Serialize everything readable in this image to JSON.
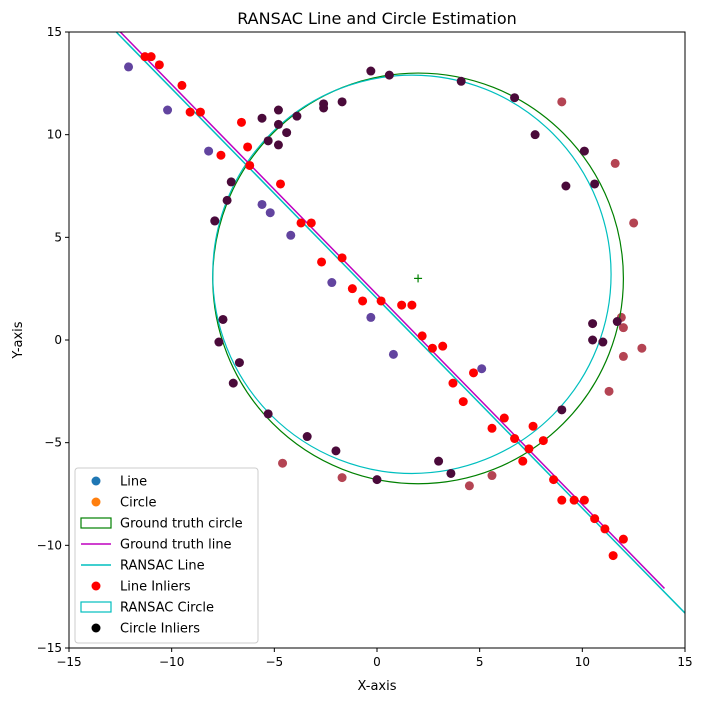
{
  "chart_data": {
    "type": "scatter",
    "title": "RANSAC Line and Circle Estimation",
    "xlabel": "X-axis",
    "ylabel": "Y-axis",
    "xlim": [
      -15,
      15
    ],
    "ylim": [
      -15,
      15
    ],
    "xticks": [
      -15,
      -10,
      -5,
      0,
      5,
      10,
      15
    ],
    "yticks": [
      -15,
      -10,
      -5,
      0,
      5,
      10,
      15
    ],
    "xtick_labels": [
      "−15",
      "−10",
      "−5",
      "0",
      "5",
      "10",
      "15"
    ],
    "ytick_labels": [
      "−15",
      "−10",
      "−5",
      "0",
      "5",
      "10",
      "15"
    ],
    "grid": false,
    "legend_position": "lower-left",
    "legend": [
      {
        "label": "Line",
        "kind": "dot",
        "color": "#1f77b4"
      },
      {
        "label": "Circle",
        "kind": "dot",
        "color": "#ff7f0e"
      },
      {
        "label": "Ground truth circle",
        "kind": "rect",
        "color": "#008000"
      },
      {
        "label": "Ground truth line",
        "kind": "line",
        "color": "#bf00bf"
      },
      {
        "label": "RANSAC Line",
        "kind": "line",
        "color": "#00bfbf"
      },
      {
        "label": "Line Inliers",
        "kind": "dot",
        "color": "#ff0000"
      },
      {
        "label": "RANSAC Circle",
        "kind": "rect",
        "color": "#00bfbf"
      },
      {
        "label": "Circle Inliers",
        "kind": "dot",
        "color": "#000000"
      }
    ],
    "ground_truth_circle": {
      "center": [
        2,
        3
      ],
      "radius": 10,
      "color": "#008000"
    },
    "ransac_circle": {
      "center": [
        1.7,
        3.2
      ],
      "radius": 9.7,
      "color": "#00bfbf"
    },
    "center_marker": {
      "x": 2,
      "y": 3,
      "color": "#008000"
    },
    "ground_truth_line": {
      "x": [
        -12.5,
        14
      ],
      "y": [
        15,
        -12.1
      ],
      "color": "#bf00bf"
    },
    "ransac_line": {
      "x": [
        -12.7,
        15
      ],
      "y": [
        15,
        -13.3
      ],
      "color": "#00bfbf"
    },
    "outlier_points": [
      [
        -12.1,
        13.3
      ],
      [
        -10.2,
        11.2
      ],
      [
        -8.2,
        9.2
      ],
      [
        -7.9,
        5.8
      ],
      [
        -5.6,
        6.6
      ],
      [
        -5.2,
        6.2
      ],
      [
        -4.2,
        5.1
      ],
      [
        -2.2,
        2.8
      ],
      [
        -0.3,
        1.1
      ],
      [
        0.8,
        -0.7
      ],
      [
        5.1,
        -1.4
      ],
      [
        9.0,
        11.6
      ],
      [
        11.6,
        8.6
      ],
      [
        12.5,
        5.7
      ],
      [
        11.9,
        1.1
      ],
      [
        12.0,
        0.6
      ],
      [
        12.0,
        -0.8
      ],
      [
        12.9,
        -0.4
      ],
      [
        11.3,
        -2.5
      ],
      [
        -4.6,
        -6.0
      ],
      [
        -1.7,
        -6.7
      ],
      [
        4.5,
        -7.1
      ],
      [
        5.6,
        -6.6
      ]
    ],
    "line_inliers": [
      [
        -11.3,
        13.8
      ],
      [
        -11.0,
        13.8
      ],
      [
        -10.6,
        13.4
      ],
      [
        -9.5,
        12.4
      ],
      [
        -9.1,
        11.1
      ],
      [
        -8.6,
        11.1
      ],
      [
        -6.6,
        10.6
      ],
      [
        -6.3,
        9.4
      ],
      [
        -7.6,
        9.0
      ],
      [
        -6.2,
        8.5
      ],
      [
        -4.7,
        7.6
      ],
      [
        -3.7,
        5.7
      ],
      [
        -3.2,
        5.7
      ],
      [
        -2.7,
        3.8
      ],
      [
        -1.7,
        4.0
      ],
      [
        -1.2,
        2.5
      ],
      [
        -0.7,
        1.9
      ],
      [
        0.2,
        1.9
      ],
      [
        1.2,
        1.7
      ],
      [
        1.7,
        1.7
      ],
      [
        2.2,
        0.2
      ],
      [
        2.7,
        -0.4
      ],
      [
        3.2,
        -0.3
      ],
      [
        3.7,
        -2.1
      ],
      [
        4.2,
        -3.0
      ],
      [
        4.7,
        -1.6
      ],
      [
        5.6,
        -4.3
      ],
      [
        6.2,
        -3.8
      ],
      [
        6.7,
        -4.8
      ],
      [
        7.1,
        -5.9
      ],
      [
        7.4,
        -5.3
      ],
      [
        7.6,
        -4.2
      ],
      [
        8.1,
        -4.9
      ],
      [
        8.6,
        -6.8
      ],
      [
        9.0,
        -7.8
      ],
      [
        9.6,
        -7.8
      ],
      [
        10.1,
        -7.8
      ],
      [
        10.6,
        -8.7
      ],
      [
        11.1,
        -9.2
      ],
      [
        11.5,
        -10.5
      ],
      [
        12.0,
        -9.7
      ]
    ],
    "circle_inliers": [
      [
        -0.3,
        13.1
      ],
      [
        0.6,
        12.9
      ],
      [
        4.1,
        12.6
      ],
      [
        6.7,
        11.8
      ],
      [
        7.7,
        10.0
      ],
      [
        -4.8,
        11.2
      ],
      [
        -4.8,
        10.5
      ],
      [
        -4.4,
        10.1
      ],
      [
        -3.9,
        10.9
      ],
      [
        -5.6,
        10.8
      ],
      [
        -2.6,
        11.3
      ],
      [
        -2.6,
        11.5
      ],
      [
        -1.7,
        11.6
      ],
      [
        -5.3,
        9.7
      ],
      [
        -4.8,
        9.5
      ],
      [
        -7.1,
        7.7
      ],
      [
        -7.3,
        6.8
      ],
      [
        -7.9,
        5.8
      ],
      [
        10.1,
        9.2
      ],
      [
        9.2,
        7.5
      ],
      [
        10.6,
        7.6
      ],
      [
        -7.5,
        1.0
      ],
      [
        -7.7,
        -0.1
      ],
      [
        -6.7,
        -1.1
      ],
      [
        -7.0,
        -2.1
      ],
      [
        10.5,
        0.8
      ],
      [
        10.5,
        0.0
      ],
      [
        11.0,
        -0.1
      ],
      [
        11.7,
        0.9
      ],
      [
        -5.3,
        -3.6
      ],
      [
        -3.4,
        -4.7
      ],
      [
        -2.0,
        -5.4
      ],
      [
        3.0,
        -5.9
      ],
      [
        3.6,
        -6.5
      ],
      [
        0.0,
        -6.8
      ],
      [
        9.0,
        -3.4
      ]
    ]
  }
}
